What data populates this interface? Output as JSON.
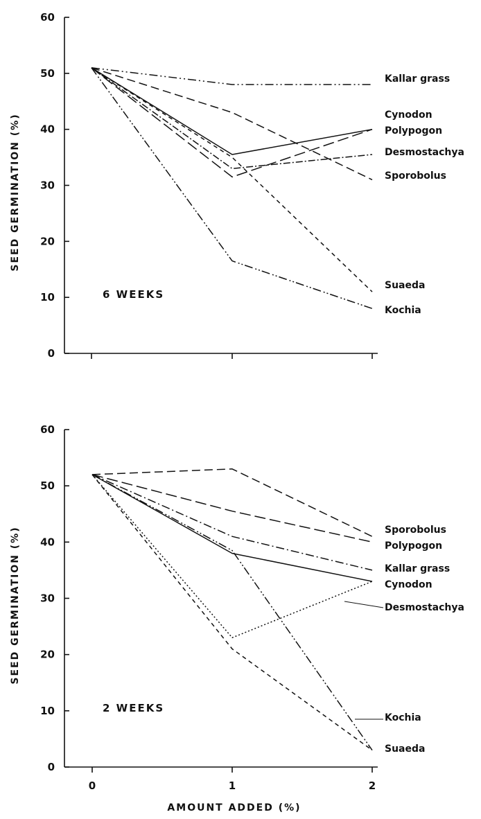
{
  "chart_data": [
    {
      "type": "line",
      "title": "6 WEEKS",
      "xlabel": "",
      "ylabel": "SEED GERMINATION (%)",
      "xlim": [
        -0.2,
        2.05
      ],
      "ylim": [
        0,
        60
      ],
      "x_ticks": [
        "0",
        "1",
        "2"
      ],
      "y_ticks": [
        "0",
        "10",
        "20",
        "30",
        "40",
        "50",
        "60"
      ],
      "x": [
        0,
        1,
        2
      ],
      "series": [
        {
          "name": "Kallar grass",
          "values": [
            51,
            48,
            48
          ],
          "dash": "12,4,2,4,2,4"
        },
        {
          "name": "Cynodon",
          "values": [
            51,
            35.5,
            40
          ],
          "dash": ""
        },
        {
          "name": "Polypogon",
          "values": [
            51,
            31.5,
            40
          ],
          "dash": "16,6"
        },
        {
          "name": "Desmostachya",
          "values": [
            51,
            33,
            35.5
          ],
          "dash": "10,3,2,3"
        },
        {
          "name": "Sporobolus",
          "values": [
            51,
            43,
            31
          ],
          "dash": "12,6"
        },
        {
          "name": "Suaeda",
          "values": [
            51,
            35,
            11
          ],
          "dash": "6,5"
        },
        {
          "name": "Kochia",
          "values": [
            51,
            16.5,
            8
          ],
          "dash": "12,4,2,3,2,3"
        }
      ]
    },
    {
      "type": "line",
      "title": "2 WEEKS",
      "xlabel": "AMOUNT ADDED (%)",
      "ylabel": "SEED GERMINATION (%)",
      "xlim": [
        -0.2,
        2.05
      ],
      "ylim": [
        0,
        60
      ],
      "x_ticks": [
        "0",
        "1",
        "2"
      ],
      "y_ticks": [
        "0",
        "10",
        "20",
        "30",
        "40",
        "50",
        "60"
      ],
      "x": [
        0,
        1,
        2
      ],
      "series": [
        {
          "name": "Sporobolus",
          "values": [
            52,
            53,
            41
          ],
          "dash": "12,6"
        },
        {
          "name": "Polypogon",
          "values": [
            52,
            45.5,
            40
          ],
          "dash": "16,6"
        },
        {
          "name": "Kallar grass",
          "values": [
            52,
            41,
            35
          ],
          "dash": "12,4,2,4"
        },
        {
          "name": "Cynodon",
          "values": [
            52,
            38,
            33
          ],
          "dash": ""
        },
        {
          "name": "Desmostachya",
          "values": [
            52,
            23,
            33
          ],
          "dash": "2,3"
        },
        {
          "name": "Kochia",
          "values": [
            52,
            38.5,
            3
          ],
          "dash": "12,4,2,3,2,3"
        },
        {
          "name": "Suaeda",
          "values": [
            52,
            21,
            3
          ],
          "dash": "6,5"
        }
      ]
    }
  ]
}
